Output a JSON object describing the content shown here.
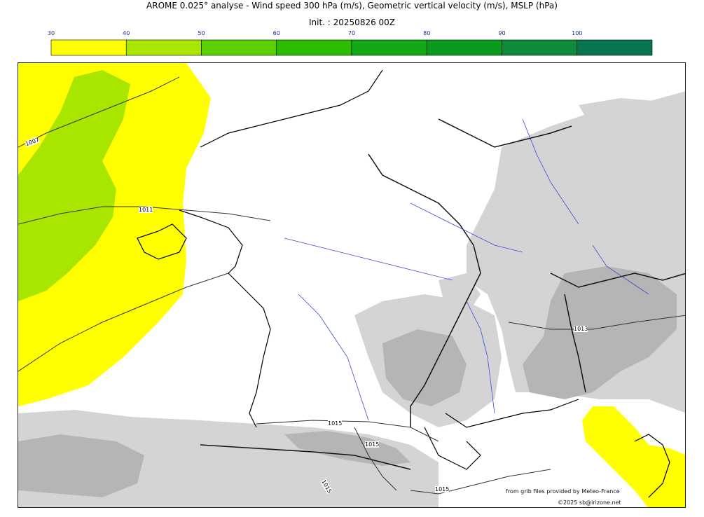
{
  "header": {
    "title": "AROME 0.025° analyse - Wind speed 300 hPa (m/s), Geometric vertical velocity (m/s), MSLP (hPa)",
    "init": "Init. : 20250826 00Z"
  },
  "colorbar": {
    "ticks": [
      "30",
      "40",
      "50",
      "60",
      "70",
      "80",
      "90",
      "100"
    ],
    "colors": [
      "#ffff00",
      "#a8e600",
      "#5ccf00",
      "#2dbd00",
      "#13a815",
      "#0a9a1e",
      "#0f8a3a",
      "#0a7350"
    ],
    "unit": "m/s"
  },
  "map": {
    "isobar_labels": [
      "1007",
      "1011",
      "1013",
      "1015",
      "1015",
      "1015",
      "1015"
    ],
    "wind_fill_colors": {
      "low": "#ffff00",
      "mid": "#a8e600"
    },
    "terrain_color": "#d4d4d4",
    "river_color": "#3a4bd8"
  },
  "footer": {
    "source": "from grib files provided by Meteo-France",
    "copyright": "©2025 sb@irizone.net"
  }
}
